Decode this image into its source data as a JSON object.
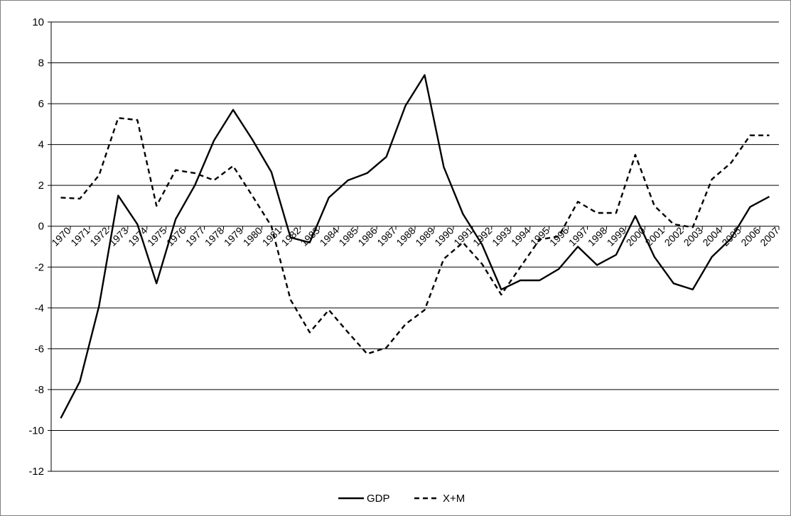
{
  "chart_data": {
    "type": "line",
    "title": "",
    "xlabel": "",
    "ylabel": "",
    "ylim": [
      -12,
      10
    ],
    "yticks": [
      -12,
      -10,
      -8,
      -6,
      -4,
      -2,
      0,
      2,
      4,
      6,
      8,
      10
    ],
    "grid": true,
    "legend_position": "bottom",
    "categories": [
      "1970",
      "1971",
      "1972",
      "1973",
      "1974",
      "1975",
      "1976",
      "1977",
      "1978",
      "1979",
      "1980",
      "1981",
      "1982",
      "1983",
      "1984",
      "1985",
      "1986",
      "1987",
      "1988",
      "1989",
      "1990",
      "1991",
      "1992",
      "1993",
      "1994",
      "1995",
      "1996",
      "1997",
      "1998",
      "1999",
      "2000",
      "2001",
      "2002",
      "2003",
      "2004",
      "2005",
      "2006",
      "2007"
    ],
    "series": [
      {
        "name": "GDP",
        "style": "solid",
        "color": "#000000",
        "values": [
          -9.4,
          -7.6,
          -3.9,
          1.5,
          0.1,
          -2.8,
          0.35,
          2.0,
          4.2,
          5.7,
          4.25,
          2.65,
          -0.55,
          -0.8,
          1.4,
          2.25,
          2.6,
          3.4,
          5.9,
          7.4,
          2.9,
          0.6,
          -0.9,
          -3.1,
          -2.65,
          -2.65,
          -2.1,
          -1.0,
          -1.9,
          -1.4,
          0.5,
          -1.5,
          -2.8,
          -3.1,
          -1.5,
          -0.6,
          0.95,
          1.45
        ]
      },
      {
        "name": "X+M",
        "style": "dashed",
        "color": "#000000",
        "values": [
          1.4,
          1.35,
          2.5,
          5.3,
          5.2,
          1.0,
          2.75,
          2.6,
          2.25,
          2.95,
          1.5,
          0.0,
          -3.6,
          -5.2,
          -4.1,
          -5.2,
          -6.25,
          -5.95,
          -4.8,
          -4.1,
          -1.6,
          -0.8,
          -1.85,
          -3.35,
          -2.0,
          -0.65,
          -0.5,
          1.2,
          0.65,
          0.65,
          3.5,
          1.0,
          0.1,
          -0.05,
          2.3,
          3.1,
          4.45,
          4.45
        ]
      }
    ]
  }
}
